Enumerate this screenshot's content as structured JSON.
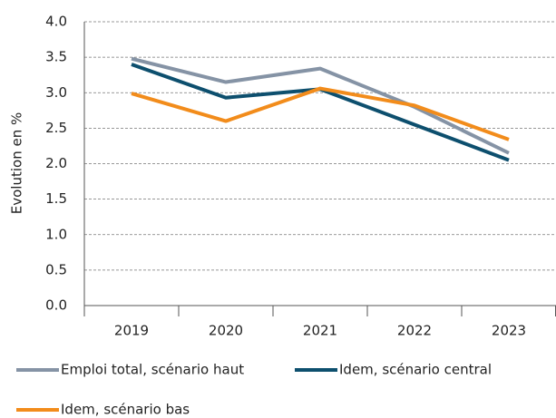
{
  "chart_data": {
    "type": "line",
    "y_axis_label": "Evolution en %",
    "categories": [
      "2019",
      "2020",
      "2021",
      "2022",
      "2023"
    ],
    "series": [
      {
        "name": "Emploi total, scénario haut",
        "color": "#8593a5",
        "values": [
          3.48,
          3.15,
          3.34,
          2.8,
          2.15
        ]
      },
      {
        "name": "Idem, scénario central",
        "color": "#0d4f6e",
        "values": [
          3.4,
          2.93,
          3.05,
          2.55,
          2.05
        ]
      },
      {
        "name": "Idem, scénario bas",
        "color": "#f28c1b",
        "values": [
          2.99,
          2.6,
          3.06,
          2.82,
          2.34
        ]
      }
    ],
    "ylim": [
      0,
      4
    ],
    "yticks": [
      {
        "value": 0,
        "label": "0.0"
      },
      {
        "value": 0.5,
        "label": "0.5"
      },
      {
        "value": 1,
        "label": "1.0"
      },
      {
        "value": 1.5,
        "label": "1.5"
      },
      {
        "value": 2,
        "label": "2.0"
      },
      {
        "value": 2.5,
        "label": "2.5"
      },
      {
        "value": 3,
        "label": "3.0"
      },
      {
        "value": 3.5,
        "label": "3.5"
      },
      {
        "value": 4,
        "label": "4.0"
      }
    ],
    "grid": true
  }
}
